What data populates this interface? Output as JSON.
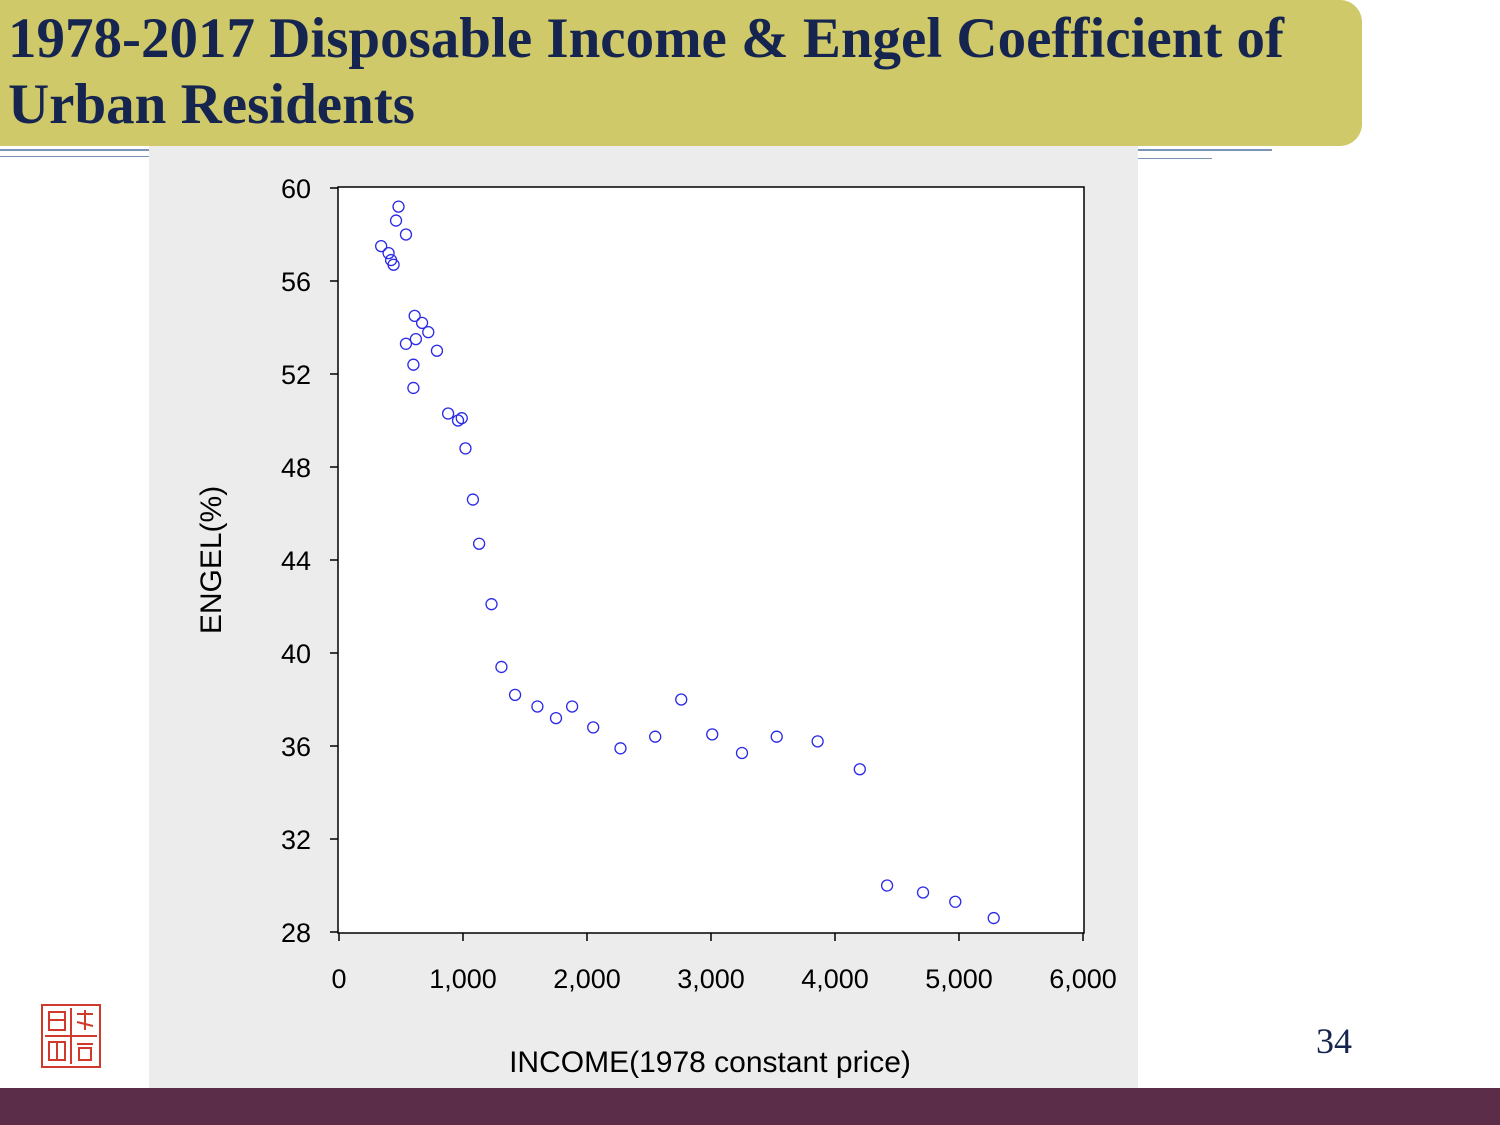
{
  "slide": {
    "title": "1978-2017 Disposable Income & Engel Coefficient of Urban Residents",
    "page_number": "34"
  },
  "colors": {
    "banner": "#cfc96a",
    "title_text": "#16254f",
    "marker": "#2a2ae8",
    "footer": "#5c2d48",
    "seal": "#d0392b"
  },
  "icons": {
    "seal": "seal-logo-icon"
  },
  "chart_data": {
    "type": "scatter",
    "title": "",
    "xlabel": "INCOME(1978 constant price)",
    "ylabel": "ENGEL(%)",
    "xlim": [
      0,
      6000
    ],
    "ylim": [
      28,
      60
    ],
    "xticks": [
      0,
      1000,
      2000,
      3000,
      4000,
      5000,
      6000
    ],
    "xtick_labels": [
      "0",
      "1,000",
      "2,000",
      "3,000",
      "4,000",
      "5,000",
      "6,000"
    ],
    "yticks": [
      28,
      32,
      36,
      40,
      44,
      48,
      52,
      56,
      60
    ],
    "ytick_labels": [
      "28",
      "32",
      "36",
      "40",
      "44",
      "48",
      "52",
      "56",
      "60"
    ],
    "grid": false,
    "marker": "open-circle",
    "points": [
      {
        "x": 340,
        "y": 57.5
      },
      {
        "x": 400,
        "y": 57.2
      },
      {
        "x": 420,
        "y": 56.9
      },
      {
        "x": 440,
        "y": 56.7
      },
      {
        "x": 460,
        "y": 58.6
      },
      {
        "x": 480,
        "y": 59.2
      },
      {
        "x": 540,
        "y": 58.0
      },
      {
        "x": 540,
        "y": 53.3
      },
      {
        "x": 610,
        "y": 54.5
      },
      {
        "x": 620,
        "y": 53.5
      },
      {
        "x": 600,
        "y": 52.4
      },
      {
        "x": 600,
        "y": 51.4
      },
      {
        "x": 670,
        "y": 54.2
      },
      {
        "x": 720,
        "y": 53.8
      },
      {
        "x": 790,
        "y": 53.0
      },
      {
        "x": 880,
        "y": 50.3
      },
      {
        "x": 960,
        "y": 50.0
      },
      {
        "x": 990,
        "y": 50.1
      },
      {
        "x": 1020,
        "y": 48.8
      },
      {
        "x": 1080,
        "y": 46.6
      },
      {
        "x": 1130,
        "y": 44.7
      },
      {
        "x": 1230,
        "y": 42.1
      },
      {
        "x": 1310,
        "y": 39.4
      },
      {
        "x": 1420,
        "y": 38.2
      },
      {
        "x": 1600,
        "y": 37.7
      },
      {
        "x": 1750,
        "y": 37.2
      },
      {
        "x": 1880,
        "y": 37.7
      },
      {
        "x": 2050,
        "y": 36.8
      },
      {
        "x": 2270,
        "y": 35.9
      },
      {
        "x": 2550,
        "y": 36.4
      },
      {
        "x": 2760,
        "y": 38.0
      },
      {
        "x": 3010,
        "y": 36.5
      },
      {
        "x": 3250,
        "y": 35.7
      },
      {
        "x": 3530,
        "y": 36.4
      },
      {
        "x": 3860,
        "y": 36.2
      },
      {
        "x": 4200,
        "y": 35.0
      },
      {
        "x": 4420,
        "y": 30.0
      },
      {
        "x": 4710,
        "y": 29.7
      },
      {
        "x": 4970,
        "y": 29.3
      },
      {
        "x": 5280,
        "y": 28.6
      }
    ]
  }
}
